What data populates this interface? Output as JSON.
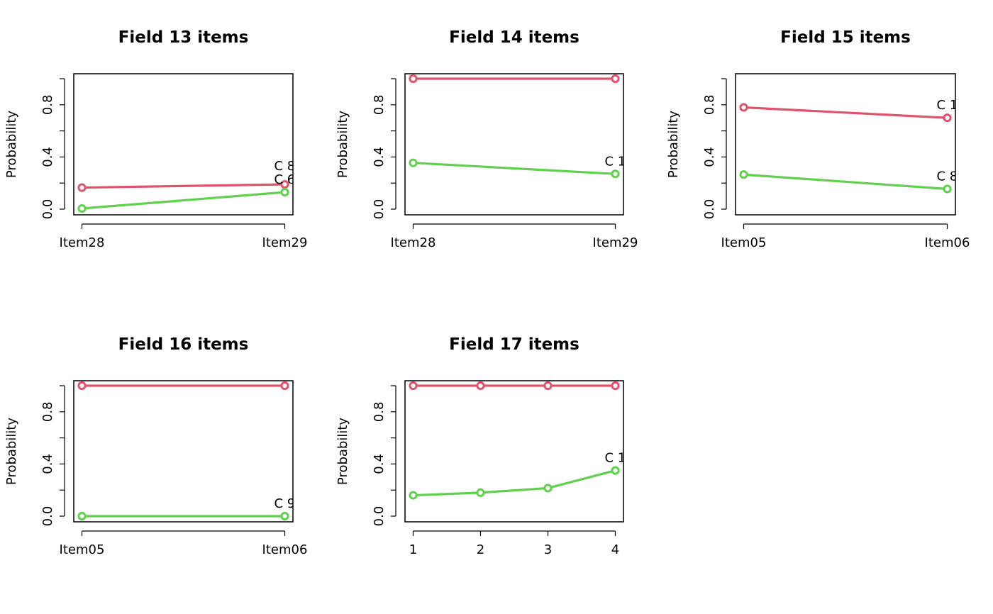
{
  "colors": {
    "series_1": "#DF536B",
    "series_2": "#61D04F",
    "axis": "#000000"
  },
  "chart_data": [
    {
      "type": "line",
      "title": "Field 13 items",
      "ylabel": "Probability",
      "categories": [
        "Item28",
        "Item29"
      ],
      "ylim": [
        0,
        1
      ],
      "yticks": [
        "0.0",
        "0.4",
        "0.8"
      ],
      "series": [
        {
          "values": [
            0.165,
            0.19
          ],
          "color": "#DF536B"
        },
        {
          "values": [
            0.005,
            0.13
          ],
          "color": "#61D04F"
        }
      ],
      "end_labels": [
        "C 8",
        "C 6"
      ]
    },
    {
      "type": "line",
      "title": "Field 14 items",
      "ylabel": "Probability",
      "categories": [
        "Item28",
        "Item29"
      ],
      "ylim": [
        0,
        1
      ],
      "yticks": [
        "0.0",
        "0.4",
        "0.8"
      ],
      "series": [
        {
          "values": [
            1.0,
            1.0
          ],
          "color": "#DF536B"
        },
        {
          "values": [
            0.355,
            0.27
          ],
          "color": "#61D04F"
        }
      ],
      "end_labels": [
        "C 1"
      ]
    },
    {
      "type": "line",
      "title": "Field 15 items",
      "ylabel": "Probability",
      "categories": [
        "Item05",
        "Item06"
      ],
      "ylim": [
        0,
        1
      ],
      "yticks": [
        "0.0",
        "0.4",
        "0.8"
      ],
      "series": [
        {
          "values": [
            0.78,
            0.7
          ],
          "color": "#DF536B"
        },
        {
          "values": [
            0.265,
            0.155
          ],
          "color": "#61D04F"
        }
      ],
      "end_labels": [
        "C 1",
        "C 8"
      ]
    },
    {
      "type": "line",
      "title": "Field 16 items",
      "ylabel": "Probability",
      "categories": [
        "Item05",
        "Item06"
      ],
      "ylim": [
        0,
        1
      ],
      "yticks": [
        "0.0",
        "0.4",
        "0.8"
      ],
      "series": [
        {
          "values": [
            1.0,
            1.0
          ],
          "color": "#DF536B"
        },
        {
          "values": [
            0.0,
            0.0
          ],
          "color": "#61D04F"
        }
      ],
      "end_labels": [
        "C 9"
      ]
    },
    {
      "type": "line",
      "title": "Field 17 items",
      "ylabel": "Probability",
      "categories": [
        "1",
        "2",
        "3",
        "4"
      ],
      "ylim": [
        0,
        1
      ],
      "yticks": [
        "0.0",
        "0.4",
        "0.8"
      ],
      "series": [
        {
          "values": [
            1.0,
            1.0,
            1.0,
            1.0
          ],
          "color": "#DF536B"
        },
        {
          "values": [
            0.16,
            0.18,
            0.215,
            0.35
          ],
          "color": "#61D04F"
        }
      ],
      "end_labels": [
        "C 1"
      ]
    }
  ]
}
